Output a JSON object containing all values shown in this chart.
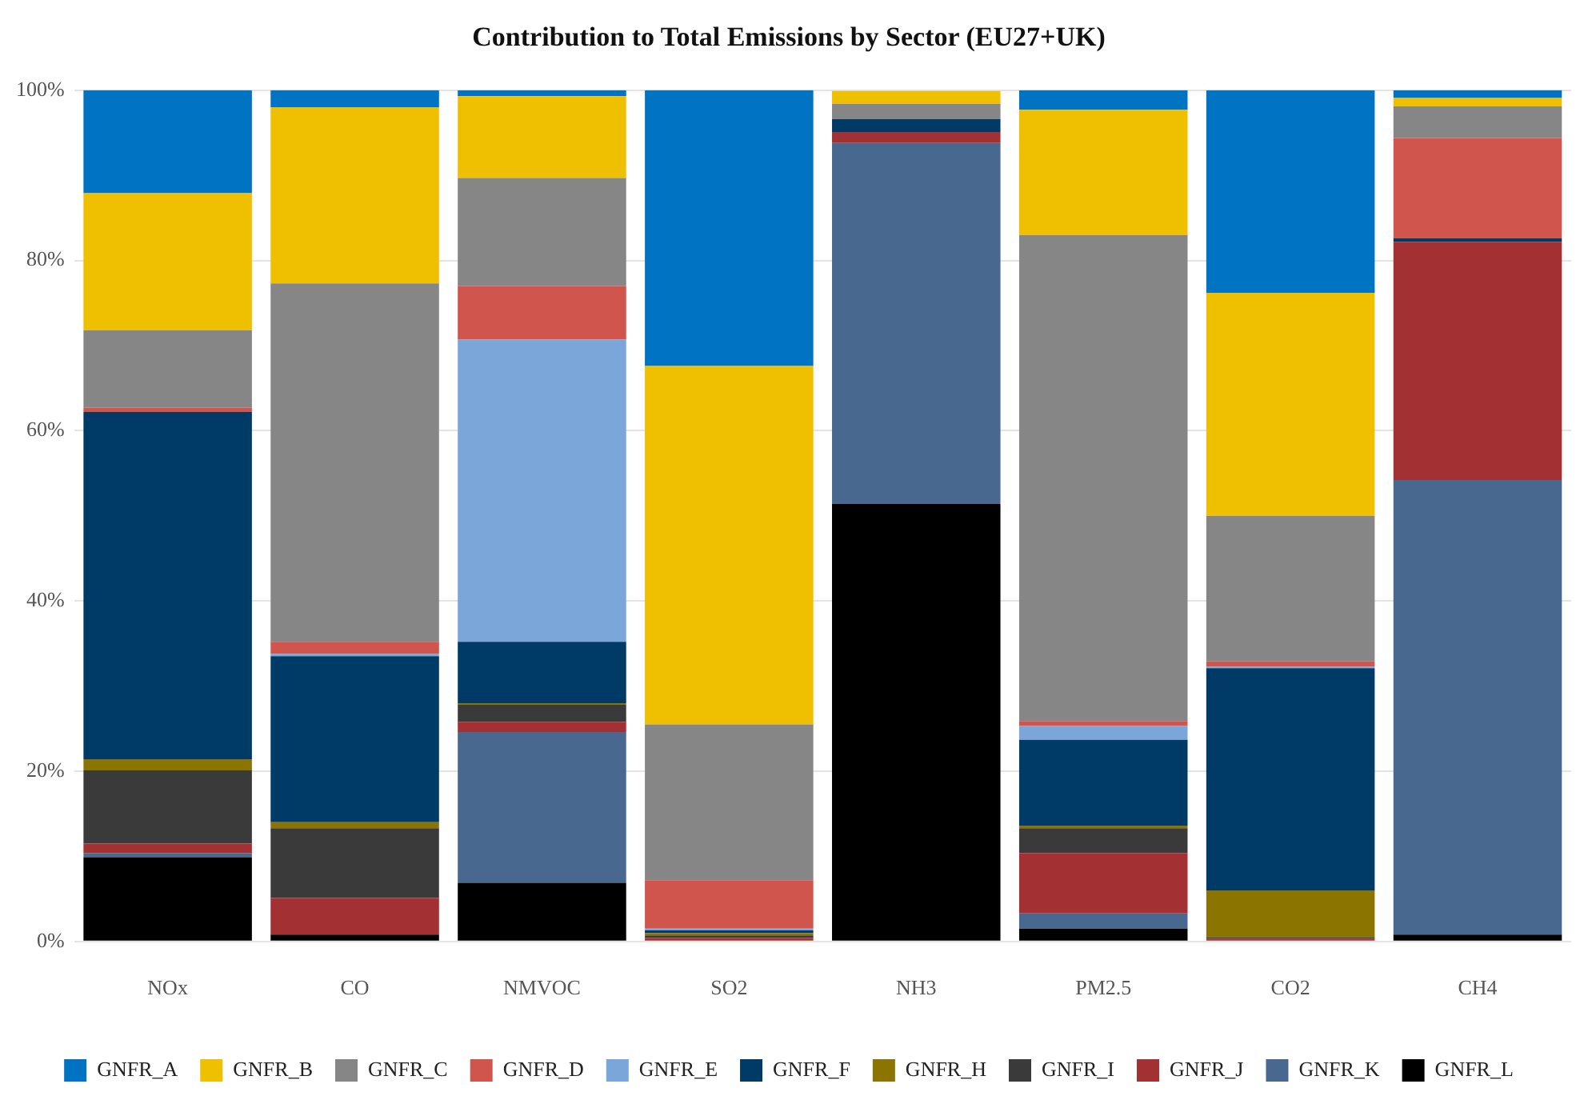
{
  "chart_data": {
    "type": "bar",
    "title": "Contribution to Total Emissions by Sector (EU27+UK)",
    "categories": [
      "NOx",
      "CO",
      "NMVOC",
      "SO2",
      "NH3",
      "PM2.5",
      "CO2",
      "CH4"
    ],
    "stacked": true,
    "ylim": [
      0,
      100
    ],
    "yticks": [
      {
        "value": 0,
        "label": "0%"
      },
      {
        "value": 20,
        "label": "20%"
      },
      {
        "value": 40,
        "label": "40%"
      },
      {
        "value": 60,
        "label": "60%"
      },
      {
        "value": 80,
        "label": "80%"
      },
      {
        "value": 100,
        "label": "100%"
      }
    ],
    "grid": "y",
    "legend": "bottom",
    "series": [
      {
        "name": "GNFR_L",
        "color": "#000000",
        "values": [
          9.9,
          0.8,
          6.9,
          0,
          51.4,
          1.5,
          0.1,
          0.8
        ]
      },
      {
        "name": "GNFR_K",
        "color": "#48688f",
        "values": [
          0.5,
          0,
          17.7,
          0,
          42.4,
          1.8,
          0,
          53.4
        ]
      },
      {
        "name": "GNFR_J",
        "color": "#a33033",
        "values": [
          1.1,
          4.3,
          1.2,
          0.4,
          1.3,
          7.1,
          0.2,
          28.0
        ]
      },
      {
        "name": "GNFR_I",
        "color": "#3a3a3a",
        "values": [
          8.6,
          8.2,
          2.0,
          0.3,
          0,
          2.9,
          0.2,
          0
        ]
      },
      {
        "name": "GNFR_H",
        "color": "#8c7400",
        "values": [
          1.3,
          0.7,
          0.2,
          0.3,
          0,
          0.3,
          5.5,
          0
        ]
      },
      {
        "name": "GNFR_F",
        "color": "#003a66",
        "values": [
          40.8,
          19.5,
          7.2,
          0.3,
          1.5,
          10.1,
          26.1,
          0.4
        ]
      },
      {
        "name": "GNFR_E",
        "color": "#7aa6da",
        "values": [
          0,
          0.3,
          35.5,
          0.2,
          0,
          1.6,
          0.2,
          0
        ]
      },
      {
        "name": "GNFR_D",
        "color": "#cf554d",
        "values": [
          0.5,
          1.4,
          6.3,
          5.7,
          0,
          0.6,
          0.6,
          11.8
        ]
      },
      {
        "name": "GNFR_C",
        "color": "#868686",
        "values": [
          9.1,
          42.1,
          12.7,
          18.3,
          1.8,
          57.1,
          17.1,
          3.7
        ]
      },
      {
        "name": "GNFR_B",
        "color": "#efc000",
        "values": [
          16.1,
          20.7,
          9.6,
          42.1,
          1.5,
          14.7,
          26.2,
          1.0
        ]
      },
      {
        "name": "GNFR_A",
        "color": "#0073c2",
        "values": [
          12.1,
          2.0,
          0.7,
          32.4,
          null,
          2.3,
          23.8,
          0.9
        ]
      }
    ]
  }
}
